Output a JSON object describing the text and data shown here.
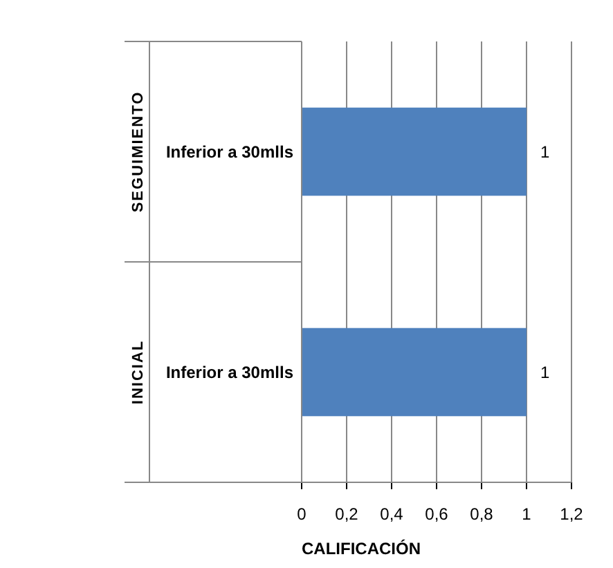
{
  "chart_data": {
    "type": "bar",
    "orientation": "horizontal",
    "categories": [
      "Inferior a 30mlls",
      "Inferior a 30mlls"
    ],
    "values": [
      1,
      1
    ],
    "color": "#4f81bd",
    "data_labels": true,
    "xlim": [
      0,
      1.2
    ],
    "xticks": [
      0,
      {
        "value": 0.2,
        "label": "0,2"
      },
      {
        "value": 0.4,
        "label": "0,4"
      },
      {
        "value": 0.6,
        "label": "0,6"
      },
      {
        "value": 0.8,
        "label": "0,8"
      },
      1,
      {
        "value": 1.2,
        "label": "1,2"
      }
    ],
    "grid": "x",
    "xlabel": "CALIFICACIÓN",
    "annotations": [
      "SEGUIMIENTO",
      "INICIAL"
    ]
  }
}
